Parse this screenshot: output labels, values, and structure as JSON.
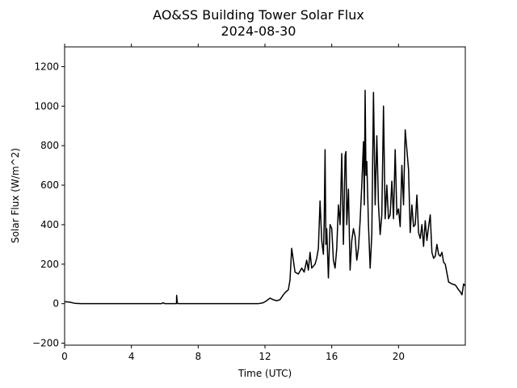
{
  "chart_data": {
    "type": "line",
    "title": "AO&SS Building Tower Solar Flux",
    "subtitle": "2024-08-30",
    "xlabel": "Time (UTC)",
    "ylabel": "Solar Flux (W/m^2)",
    "xlim": [
      0,
      24
    ],
    "ylim": [
      -210,
      1300
    ],
    "xticks": [
      0,
      4,
      8,
      12,
      16,
      20
    ],
    "yticks": [
      -200,
      0,
      200,
      400,
      600,
      800,
      1000,
      1200
    ],
    "grid": false,
    "line_color": "#000000",
    "series": [
      {
        "x": [
          0.0,
          0.3,
          0.6,
          1.0,
          2.0,
          3.0,
          4.0,
          5.0,
          5.8,
          5.9,
          6.0,
          6.5,
          6.7,
          6.71,
          6.75,
          6.8,
          7.0,
          8.0,
          9.0,
          10.0,
          11.0,
          11.6,
          11.9,
          12.1,
          12.3,
          12.5,
          12.7,
          12.9,
          13.1,
          13.25,
          13.4,
          13.5,
          13.6,
          13.8,
          14.0,
          14.2,
          14.35,
          14.5,
          14.6,
          14.7,
          14.8,
          15.0,
          15.1,
          15.2,
          15.3,
          15.4,
          15.5,
          15.55,
          15.6,
          15.65,
          15.7,
          15.8,
          15.9,
          16.0,
          16.1,
          16.2,
          16.3,
          16.4,
          16.5,
          16.6,
          16.7,
          16.8,
          16.85,
          16.9,
          17.0,
          17.1,
          17.2,
          17.3,
          17.4,
          17.5,
          17.6,
          17.7,
          17.8,
          17.9,
          17.95,
          18.0,
          18.05,
          18.1,
          18.2,
          18.3,
          18.4,
          18.5,
          18.6,
          18.7,
          18.8,
          18.9,
          19.0,
          19.1,
          19.2,
          19.3,
          19.4,
          19.5,
          19.6,
          19.7,
          19.8,
          19.9,
          20.0,
          20.1,
          20.2,
          20.3,
          20.4,
          20.5,
          20.6,
          20.7,
          20.8,
          20.9,
          21.0,
          21.1,
          21.2,
          21.3,
          21.4,
          21.5,
          21.6,
          21.7,
          21.8,
          21.9,
          22.0,
          22.1,
          22.2,
          22.3,
          22.4,
          22.5,
          22.6,
          22.7,
          22.8,
          23.0,
          23.2,
          23.4,
          23.6,
          23.7,
          23.8,
          23.9,
          24.0
        ],
        "y": [
          10,
          8,
          2,
          0,
          0,
          0,
          0,
          0,
          0,
          5,
          0,
          0,
          0,
          42,
          5,
          0,
          0,
          0,
          0,
          0,
          0,
          0,
          5,
          15,
          28,
          20,
          15,
          20,
          45,
          60,
          70,
          120,
          280,
          160,
          150,
          180,
          160,
          220,
          170,
          260,
          180,
          200,
          230,
          280,
          520,
          320,
          250,
          420,
          780,
          300,
          380,
          130,
          400,
          380,
          220,
          180,
          280,
          500,
          400,
          760,
          300,
          750,
          770,
          400,
          580,
          170,
          320,
          380,
          340,
          220,
          280,
          420,
          600,
          820,
          500,
          1080,
          650,
          720,
          400,
          180,
          350,
          1070,
          500,
          850,
          500,
          350,
          450,
          1000,
          430,
          600,
          430,
          450,
          620,
          430,
          780,
          450,
          480,
          390,
          700,
          500,
          880,
          780,
          680,
          360,
          500,
          390,
          400,
          550,
          360,
          330,
          400,
          290,
          420,
          320,
          390,
          450,
          260,
          230,
          240,
          300,
          250,
          240,
          260,
          210,
          200,
          110,
          100,
          95,
          70,
          60,
          45,
          100,
          90
        ]
      }
    ]
  }
}
